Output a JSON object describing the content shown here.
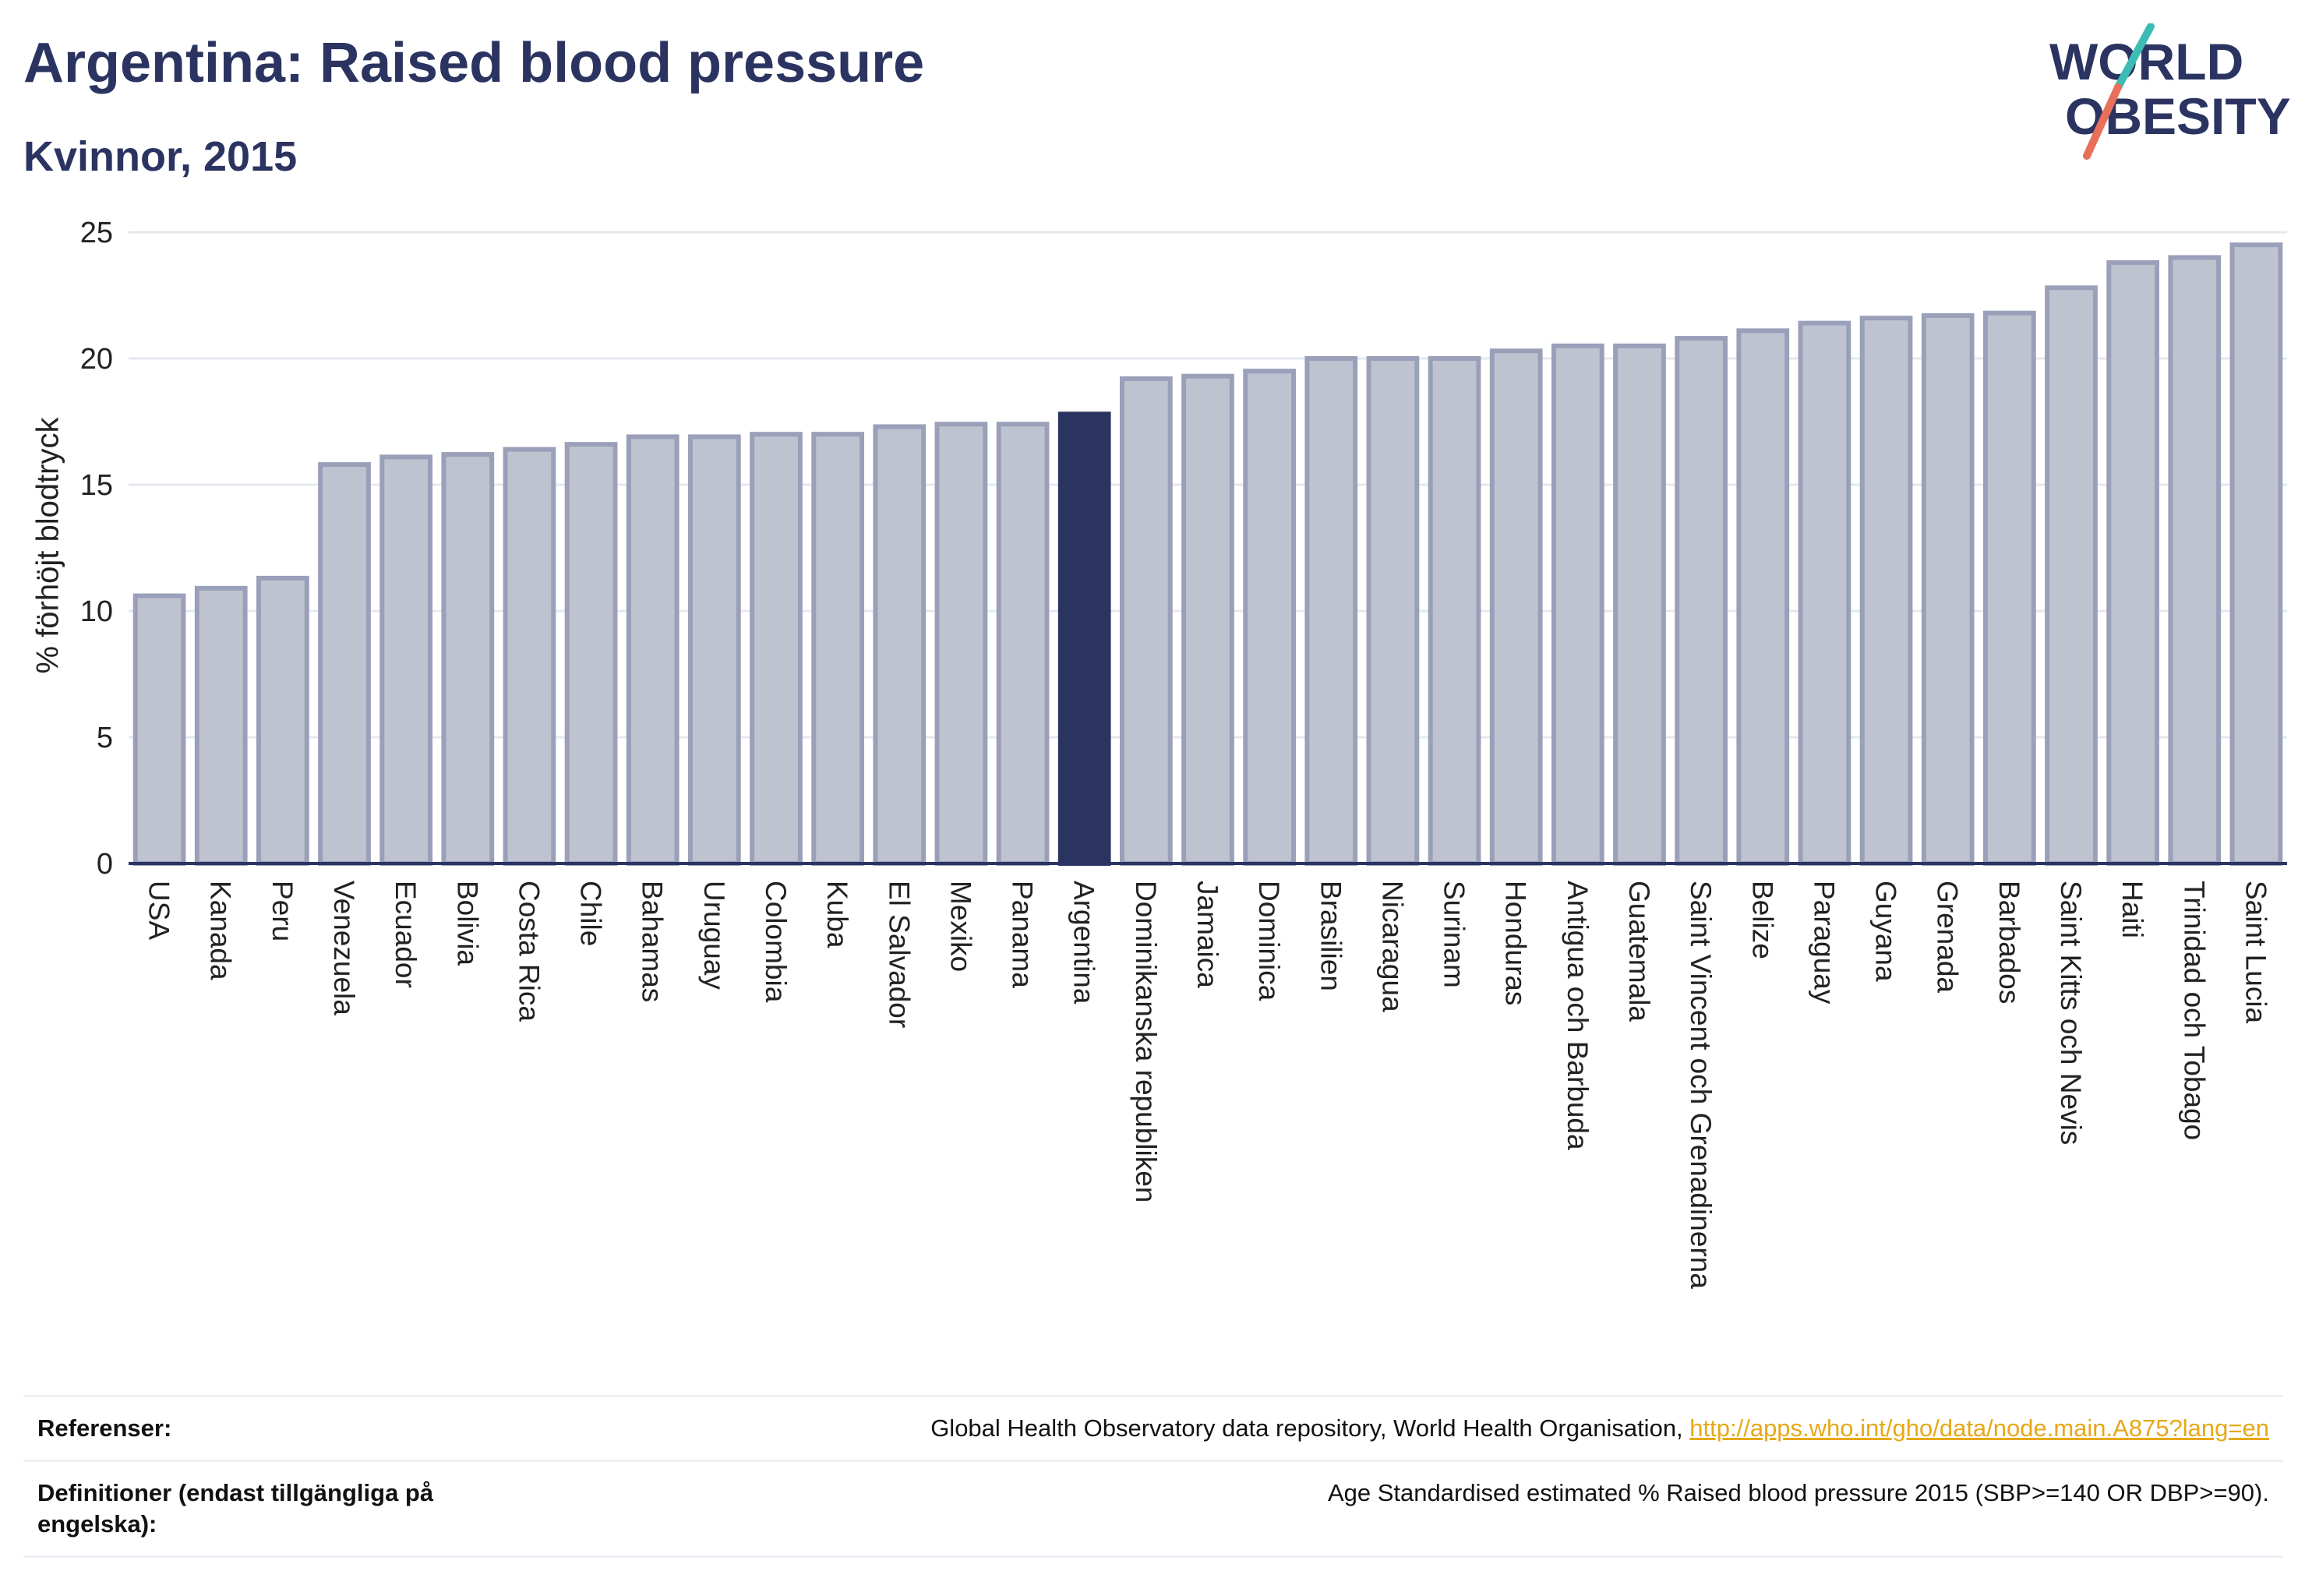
{
  "header": {
    "title": "Argentina: Raised blood pressure",
    "subtitle": "Kvinnor, 2015"
  },
  "logo": {
    "line1": "WORLD",
    "line2": "OBESITY"
  },
  "colors": {
    "bar": "#bfc3d0",
    "bar_border": "#9aa0b9",
    "highlight": "#2b3461",
    "axis": "#2b3461"
  },
  "chart_data": {
    "type": "bar",
    "ylabel": "% förhöjt blodtryck",
    "ylim": [
      0,
      25
    ],
    "yticks": [
      0,
      5,
      10,
      15,
      20,
      25
    ],
    "grid": true,
    "highlight": "Argentina",
    "categories": [
      "USA",
      "Kanada",
      "Peru",
      "Venezuela",
      "Ecuador",
      "Bolivia",
      "Costa Rica",
      "Chile",
      "Bahamas",
      "Uruguay",
      "Colombia",
      "Kuba",
      "El Salvador",
      "Mexiko",
      "Panama",
      "Argentina",
      "Dominikanska republiken",
      "Jamaica",
      "Dominica",
      "Brasilien",
      "Nicaragua",
      "Surinam",
      "Honduras",
      "Antigua och Barbuda",
      "Guatemala",
      "Saint Vincent och Grenadinerna",
      "Belize",
      "Paraguay",
      "Guyana",
      "Grenada",
      "Barbados",
      "Saint Kitts och Nevis",
      "Haiti",
      "Trinidad och Tobago",
      "Saint Lucia"
    ],
    "values": [
      10.6,
      10.9,
      11.3,
      15.8,
      16.1,
      16.2,
      16.4,
      16.6,
      16.9,
      16.9,
      17.0,
      17.0,
      17.3,
      17.4,
      17.4,
      17.8,
      19.2,
      19.3,
      19.5,
      20.0,
      20.0,
      20.0,
      20.3,
      20.5,
      20.5,
      20.8,
      21.1,
      21.4,
      21.6,
      21.7,
      21.8,
      22.8,
      23.8,
      24.0,
      24.5
    ]
  },
  "footer": {
    "references_label": "Referenser:",
    "references_text": "Global Health Observatory data repository, World Health Organisation, ",
    "references_link": "http://apps.who.int/gho/data/node.main.A875?lang=en",
    "definitions_label": "Definitioner (endast tillgängliga på engelska):",
    "definitions_text": "Age Standardised estimated % Raised blood pressure 2015 (SBP>=140 OR DBP>=90)."
  }
}
